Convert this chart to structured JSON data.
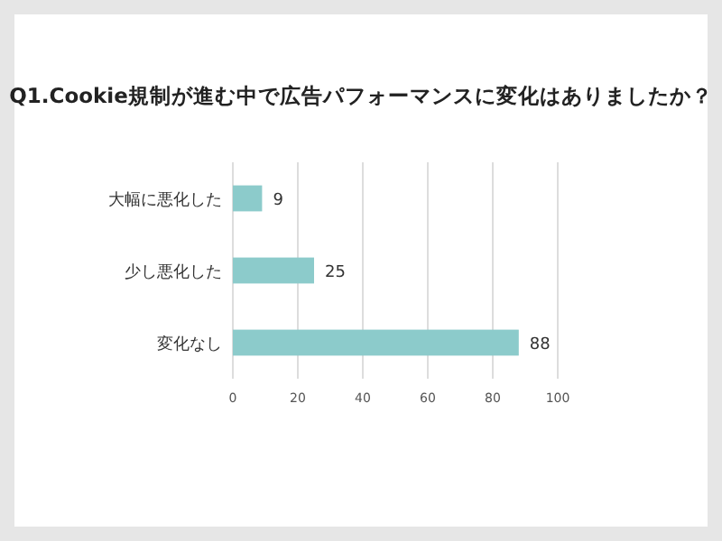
{
  "chart_data": {
    "type": "bar",
    "orientation": "horizontal",
    "title": "Q1.Cookie規制が進む中で広告パフォーマンスに変化はありましたか？",
    "categories": [
      "大幅に悪化した",
      "少し悪化した",
      "変化なし"
    ],
    "values": [
      9,
      25,
      88
    ],
    "color": "#8ccbcb",
    "xlim": [
      0,
      100
    ],
    "xticks": [
      0,
      20,
      40,
      60,
      80,
      100
    ],
    "grid": "x",
    "data_labels": true
  }
}
